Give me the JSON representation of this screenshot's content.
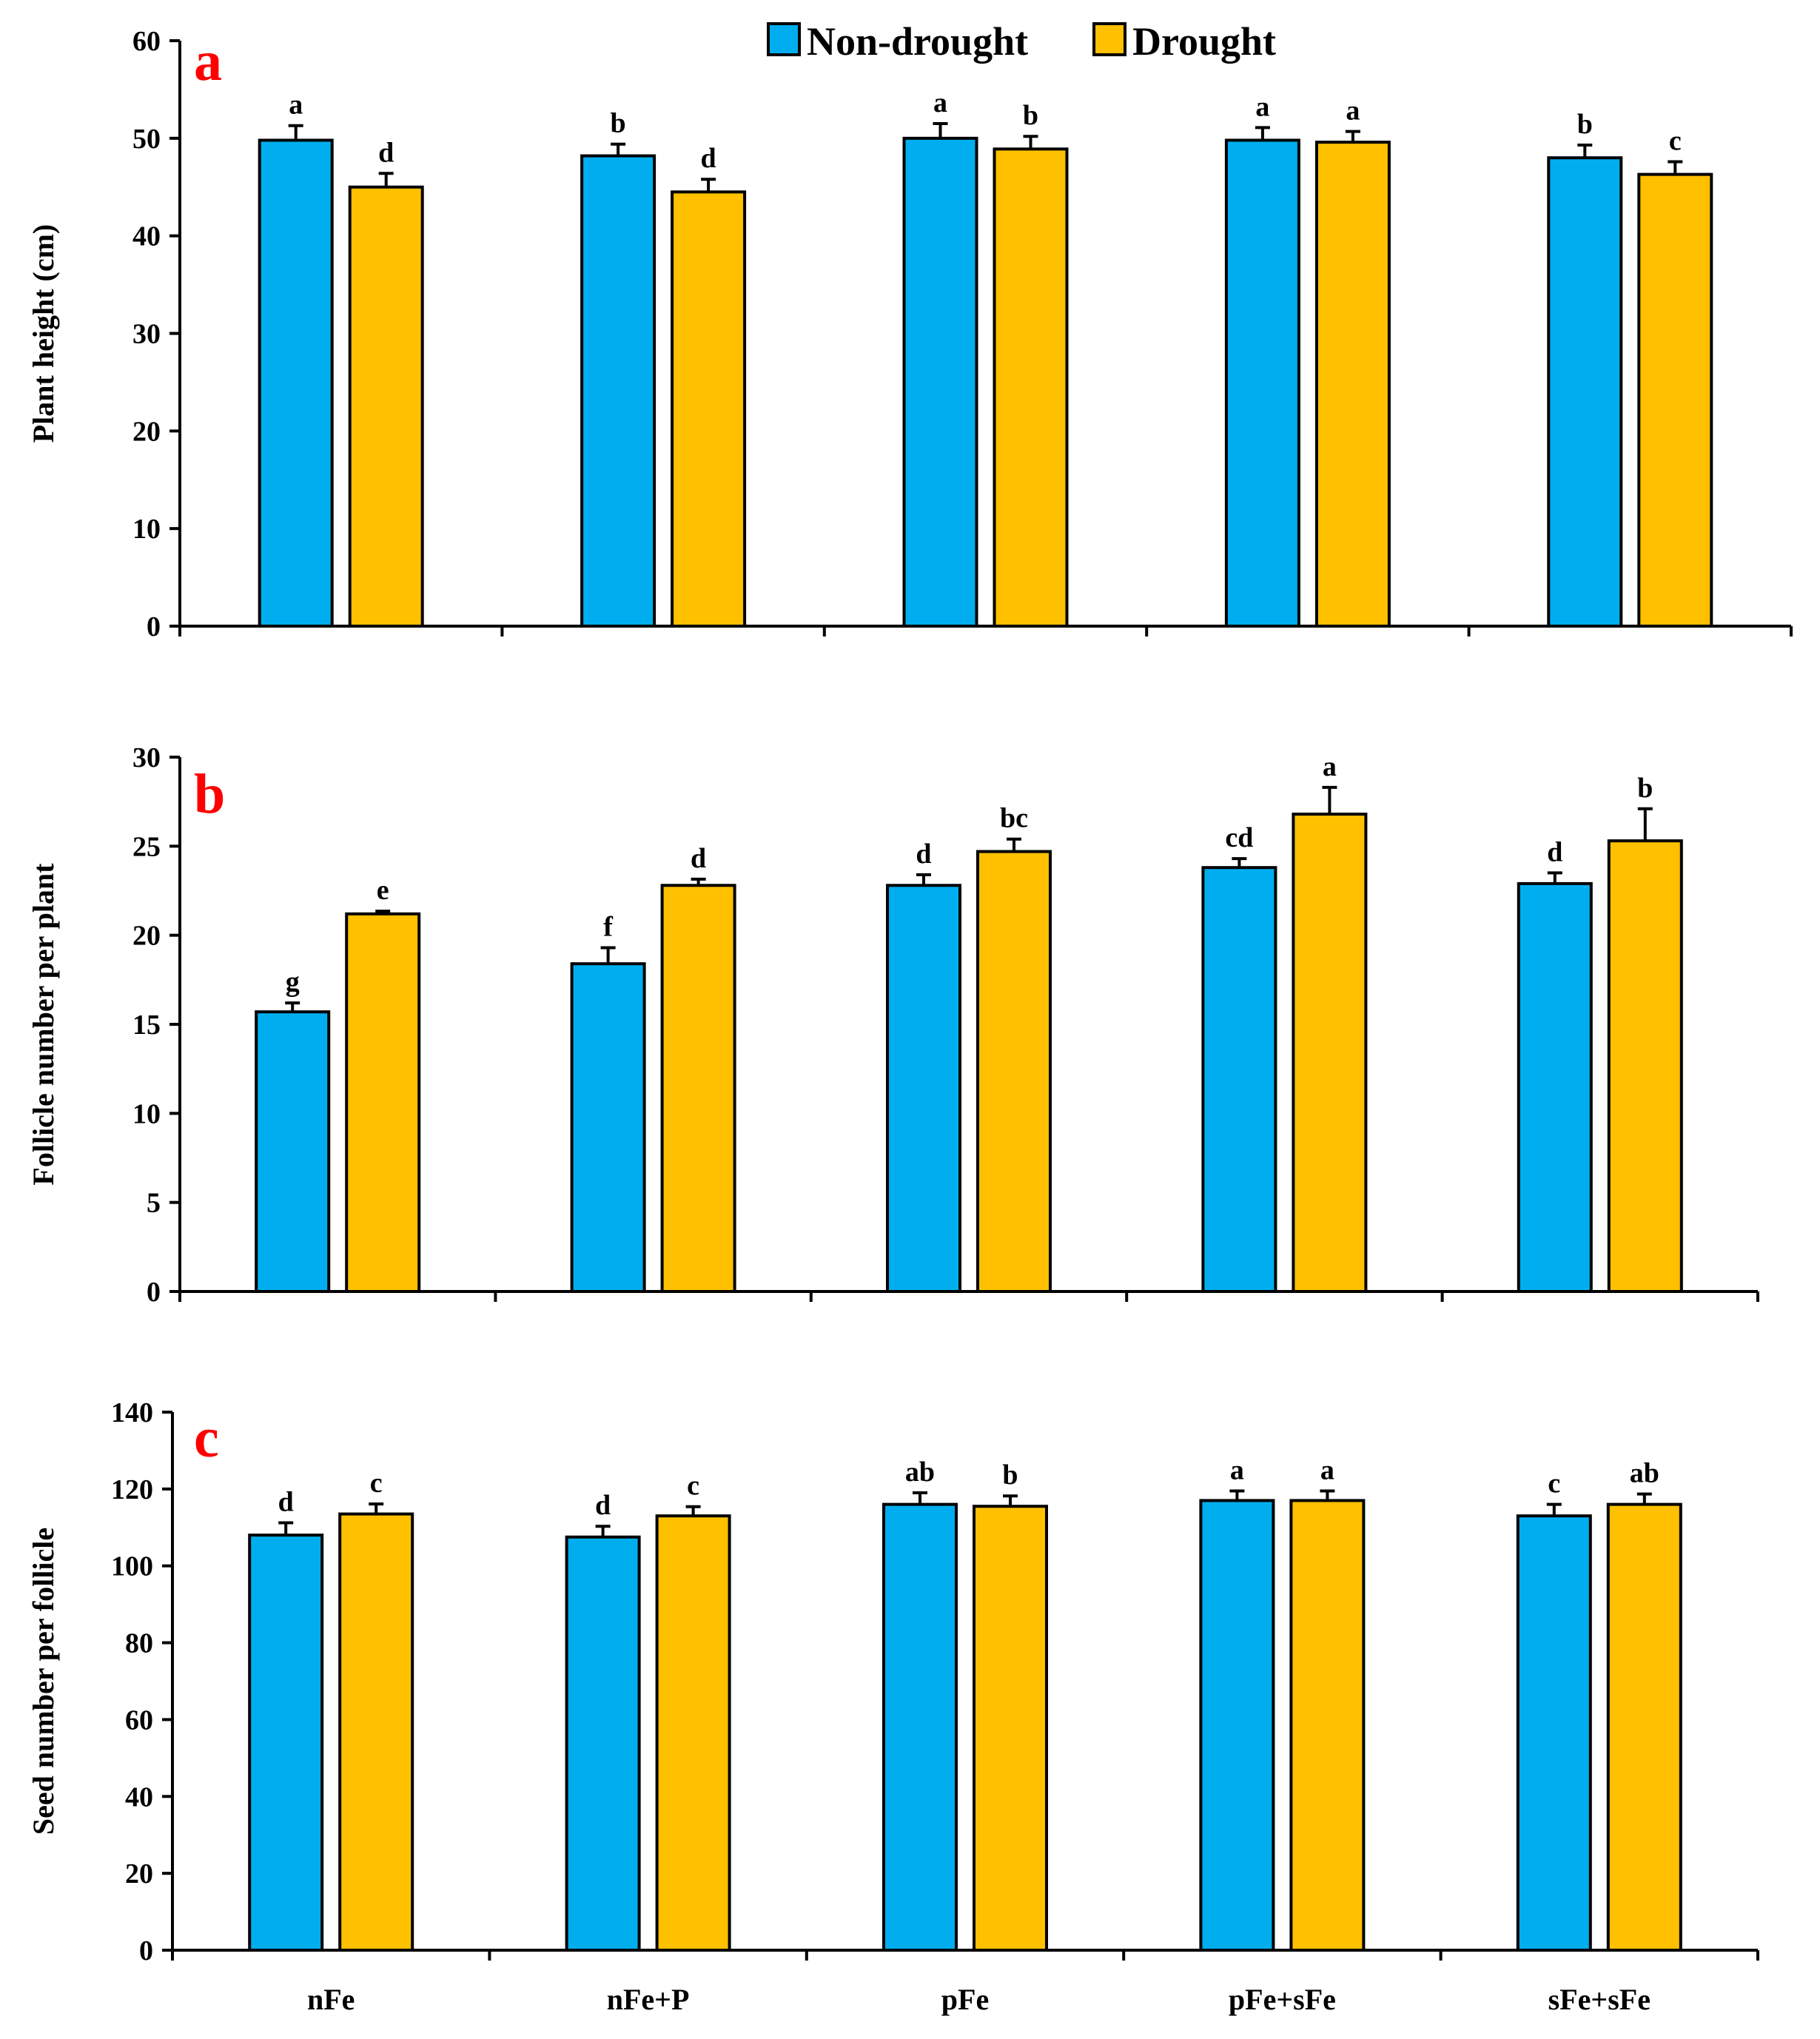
{
  "colors": {
    "non_drought": "#00AEEF",
    "drought": "#FFC000",
    "panel_letter": "#FF0000",
    "axis": "#000000"
  },
  "legend": [
    {
      "label": "Non-drought",
      "color": "#00AEEF"
    },
    {
      "label": "Drought",
      "color": "#FFC000"
    }
  ],
  "chart_data": [
    {
      "type": "bar",
      "panel": "a",
      "title": "",
      "xlabel": "",
      "ylabel": "Plant height (cm)",
      "ylim": [
        0,
        60
      ],
      "yticks": [
        0,
        10,
        20,
        30,
        40,
        50,
        60
      ],
      "categories": [
        "nFe",
        "nFe+P",
        "pFe",
        "pFe+sFe",
        "sFe+sFe"
      ],
      "show_category_labels": false,
      "series": [
        {
          "name": "Non-drought",
          "values": [
            49.8,
            48.2,
            50.0,
            49.8,
            48.0
          ],
          "errors": [
            1.5,
            1.2,
            1.5,
            1.3,
            1.3
          ],
          "letters": [
            "a",
            "b",
            "a",
            "a",
            "b"
          ]
        },
        {
          "name": "Drought",
          "values": [
            45.0,
            44.5,
            48.9,
            49.6,
            46.3
          ],
          "errors": [
            1.4,
            1.3,
            1.3,
            1.1,
            1.3
          ],
          "letters": [
            "d",
            "d",
            "b",
            "a",
            "c"
          ]
        }
      ]
    },
    {
      "type": "bar",
      "panel": "b",
      "title": "",
      "xlabel": "",
      "ylabel": "Follicle number per plant",
      "ylim": [
        0,
        30
      ],
      "yticks": [
        0,
        5,
        10,
        15,
        20,
        25,
        30
      ],
      "categories": [
        "nFe",
        "nFe+P",
        "pFe",
        "pFe+sFe",
        "sFe+sFe"
      ],
      "show_category_labels": false,
      "series": [
        {
          "name": "Non-drought",
          "values": [
            15.7,
            18.4,
            22.8,
            23.8,
            22.9
          ],
          "errors": [
            0.5,
            0.9,
            0.6,
            0.5,
            0.6
          ],
          "letters": [
            "g",
            "f",
            "d",
            "cd",
            "d"
          ]
        },
        {
          "name": "Drought",
          "values": [
            21.2,
            22.8,
            24.7,
            26.8,
            25.3
          ],
          "errors": [
            0.15,
            0.35,
            0.7,
            1.5,
            1.8
          ],
          "letters": [
            "e",
            "d",
            "bc",
            "a",
            "b"
          ]
        }
      ]
    },
    {
      "type": "bar",
      "panel": "c",
      "title": "",
      "xlabel": "",
      "ylabel": "Seed number per follicle",
      "ylim": [
        0,
        140
      ],
      "yticks": [
        0,
        20,
        40,
        60,
        80,
        100,
        120,
        140
      ],
      "categories": [
        "nFe",
        "nFe+P",
        "pFe",
        "pFe+sFe",
        "sFe+sFe"
      ],
      "show_category_labels": true,
      "series": [
        {
          "name": "Non-drought",
          "values": [
            108.0,
            107.5,
            116.0,
            117.0,
            113.0
          ],
          "errors": [
            3.2,
            2.8,
            3.0,
            2.5,
            3.0
          ],
          "letters": [
            "d",
            "d",
            "ab",
            "a",
            "c"
          ]
        },
        {
          "name": "Drought",
          "values": [
            113.5,
            113.0,
            115.5,
            117.0,
            116.0
          ],
          "errors": [
            2.6,
            2.4,
            2.7,
            2.5,
            2.7
          ],
          "letters": [
            "c",
            "c",
            "b",
            "a",
            "ab"
          ]
        }
      ]
    }
  ]
}
